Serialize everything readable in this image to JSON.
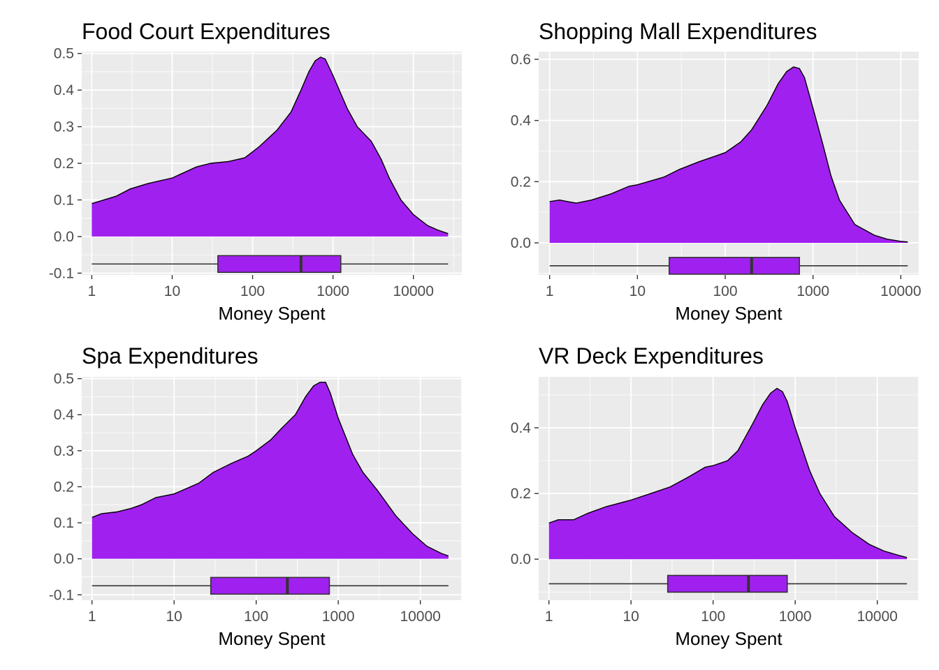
{
  "colors": {
    "panel_bg": "#ebebeb",
    "grid_major": "#ffffff",
    "fill": "#a020f0",
    "outline": "#000000",
    "box_line": "#333333",
    "tick_text": "#4d4d4d"
  },
  "chart_data": [
    {
      "type": "area",
      "subtype": "density-with-boxplot",
      "title": "Food Court Expenditures",
      "xlabel": "Money Spent",
      "ylabel": "",
      "x_scale": "log10",
      "grid": true,
      "xlim": [
        0.75,
        40000
      ],
      "ylim": [
        -0.105,
        0.505
      ],
      "xticks": [
        1,
        10,
        100,
        1000,
        10000
      ],
      "xtick_labels": [
        "1",
        "10",
        "100",
        "1000",
        "10000"
      ],
      "yticks": [
        -0.1,
        0.0,
        0.1,
        0.2,
        0.3,
        0.4,
        0.5
      ],
      "ytick_labels": [
        "-0.1",
        "0.0",
        "0.1",
        "0.2",
        "0.3",
        "0.4",
        "0.5"
      ],
      "density": {
        "x": [
          1,
          2,
          3,
          5,
          10,
          20,
          30,
          50,
          80,
          120,
          200,
          300,
          400,
          500,
          600,
          700,
          800,
          1000,
          1500,
          2000,
          3000,
          4000,
          5000,
          7000,
          10000,
          15000,
          20000,
          27000
        ],
        "y": [
          0.09,
          0.11,
          0.13,
          0.145,
          0.16,
          0.19,
          0.2,
          0.205,
          0.215,
          0.245,
          0.29,
          0.34,
          0.4,
          0.45,
          0.48,
          0.49,
          0.485,
          0.44,
          0.35,
          0.3,
          0.26,
          0.21,
          0.16,
          0.1,
          0.06,
          0.03,
          0.018,
          0.008
        ]
      },
      "boxplot": {
        "y": -0.075,
        "whisker_low": 1,
        "q1": 37,
        "median": 400,
        "q3": 1250,
        "whisker_high": 27000
      }
    },
    {
      "type": "area",
      "subtype": "density-with-boxplot",
      "title": "Shopping Mall Expenditures",
      "xlabel": "Money Spent",
      "ylabel": "",
      "x_scale": "log10",
      "grid": true,
      "xlim": [
        0.75,
        16000
      ],
      "ylim": [
        -0.105,
        0.625
      ],
      "xticks": [
        1,
        10,
        100,
        1000,
        10000
      ],
      "xtick_labels": [
        "1",
        "10",
        "100",
        "1000",
        "10000"
      ],
      "yticks": [
        0.0,
        0.2,
        0.4,
        0.6
      ],
      "ytick_labels": [
        "0.0",
        "0.2",
        "0.4",
        "0.6"
      ],
      "density": {
        "x": [
          1,
          1.3,
          1.6,
          2,
          3,
          5,
          8,
          10,
          20,
          30,
          50,
          100,
          150,
          200,
          300,
          400,
          500,
          600,
          700,
          800,
          1000,
          1300,
          1600,
          2000,
          3000,
          5000,
          7000,
          10000,
          12000
        ],
        "y": [
          0.135,
          0.14,
          0.135,
          0.13,
          0.14,
          0.16,
          0.185,
          0.19,
          0.215,
          0.24,
          0.265,
          0.295,
          0.33,
          0.37,
          0.45,
          0.52,
          0.56,
          0.575,
          0.57,
          0.54,
          0.44,
          0.32,
          0.22,
          0.14,
          0.06,
          0.025,
          0.012,
          0.005,
          0.003
        ]
      },
      "boxplot": {
        "y": -0.075,
        "whisker_low": 1,
        "q1": 23,
        "median": 200,
        "q3": 700,
        "whisker_high": 12000
      }
    },
    {
      "type": "area",
      "subtype": "density-with-boxplot",
      "title": "Spa Expenditures",
      "xlabel": "Money Spent",
      "ylabel": "",
      "x_scale": "log10",
      "grid": true,
      "xlim": [
        0.75,
        32000
      ],
      "ylim": [
        -0.115,
        0.505
      ],
      "xticks": [
        1,
        10,
        100,
        1000,
        10000
      ],
      "xtick_labels": [
        "1",
        "10",
        "100",
        "1000",
        "10000"
      ],
      "yticks": [
        -0.1,
        0.0,
        0.1,
        0.2,
        0.3,
        0.4,
        0.5
      ],
      "ytick_labels": [
        "-0.1",
        "0.0",
        "0.1",
        "0.2",
        "0.3",
        "0.4",
        "0.5"
      ],
      "density": {
        "x": [
          1,
          1.3,
          2,
          3,
          4,
          6,
          10,
          20,
          30,
          50,
          80,
          100,
          150,
          200,
          300,
          400,
          500,
          600,
          700,
          800,
          1000,
          1500,
          2000,
          3000,
          5000,
          8000,
          12000,
          18000,
          22000
        ],
        "y": [
          0.115,
          0.125,
          0.13,
          0.14,
          0.15,
          0.17,
          0.18,
          0.21,
          0.24,
          0.265,
          0.285,
          0.3,
          0.33,
          0.36,
          0.4,
          0.45,
          0.48,
          0.49,
          0.49,
          0.46,
          0.39,
          0.29,
          0.24,
          0.19,
          0.12,
          0.07,
          0.035,
          0.015,
          0.008
        ]
      },
      "boxplot": {
        "y": -0.075,
        "whisker_low": 1,
        "q1": 28,
        "median": 240,
        "q3": 780,
        "whisker_high": 22000
      }
    },
    {
      "type": "area",
      "subtype": "density-with-boxplot",
      "title": "VR Deck Expenditures",
      "xlabel": "Money Spent",
      "ylabel": "",
      "x_scale": "log10",
      "grid": true,
      "xlim": [
        0.75,
        32000
      ],
      "ylim": [
        -0.125,
        0.555
      ],
      "xticks": [
        1,
        10,
        100,
        1000,
        10000
      ],
      "xtick_labels": [
        "1",
        "10",
        "100",
        "1000",
        "10000"
      ],
      "yticks": [
        0.0,
        0.2,
        0.4
      ],
      "ytick_labels": [
        "0.0",
        "0.2",
        "0.4"
      ],
      "density": {
        "x": [
          1,
          1.3,
          2,
          3,
          5,
          10,
          20,
          30,
          50,
          80,
          100,
          150,
          200,
          300,
          400,
          500,
          600,
          700,
          800,
          1000,
          1500,
          2000,
          3000,
          5000,
          8000,
          12000,
          18000,
          23000
        ],
        "y": [
          0.11,
          0.12,
          0.12,
          0.14,
          0.16,
          0.18,
          0.205,
          0.22,
          0.25,
          0.28,
          0.285,
          0.3,
          0.33,
          0.41,
          0.47,
          0.505,
          0.52,
          0.51,
          0.48,
          0.4,
          0.27,
          0.2,
          0.13,
          0.08,
          0.045,
          0.025,
          0.012,
          0.005
        ]
      },
      "boxplot": {
        "y": -0.075,
        "whisker_low": 1,
        "q1": 28,
        "median": 270,
        "q3": 800,
        "whisker_high": 23000
      }
    }
  ]
}
